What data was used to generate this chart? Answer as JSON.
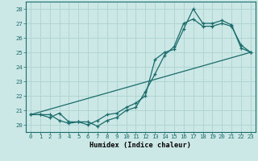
{
  "xlabel": "Humidex (Indice chaleur)",
  "bg_color": "#cce8e6",
  "line_color": "#1a6b6b",
  "grid_color": "#b0d5d2",
  "xlim": [
    -0.5,
    23.5
  ],
  "ylim": [
    19.5,
    28.5
  ],
  "xticks": [
    0,
    1,
    2,
    3,
    4,
    5,
    6,
    7,
    8,
    9,
    10,
    11,
    12,
    13,
    14,
    15,
    16,
    17,
    18,
    19,
    20,
    21,
    22,
    23
  ],
  "yticks": [
    20,
    21,
    22,
    23,
    24,
    25,
    26,
    27,
    28
  ],
  "series1": {
    "x": [
      0,
      1,
      2,
      3,
      4,
      5,
      6,
      7,
      8,
      9,
      10,
      11,
      12,
      13,
      14,
      15,
      16,
      17,
      18,
      19,
      20,
      21,
      22,
      23
    ],
    "y": [
      20.7,
      20.7,
      20.7,
      20.3,
      20.1,
      20.2,
      20.0,
      20.3,
      20.7,
      20.8,
      21.2,
      21.5,
      22.0,
      24.5,
      25.0,
      25.2,
      26.6,
      28.0,
      27.0,
      27.0,
      27.2,
      26.9,
      25.3,
      25.0
    ]
  },
  "series2": {
    "x": [
      0,
      1,
      2,
      3,
      4,
      5,
      6,
      7,
      8,
      9,
      10,
      11,
      12,
      13,
      14,
      15,
      16,
      17,
      18,
      19,
      20,
      21,
      22,
      23
    ],
    "y": [
      20.7,
      20.7,
      20.5,
      20.8,
      20.2,
      20.2,
      20.2,
      19.9,
      20.3,
      20.5,
      21.0,
      21.2,
      22.3,
      23.5,
      24.8,
      25.4,
      27.0,
      27.3,
      26.8,
      26.8,
      27.0,
      26.8,
      25.5,
      25.0
    ]
  },
  "series3_x": [
    0,
    23
  ],
  "series3_y": [
    20.7,
    25.0
  ]
}
